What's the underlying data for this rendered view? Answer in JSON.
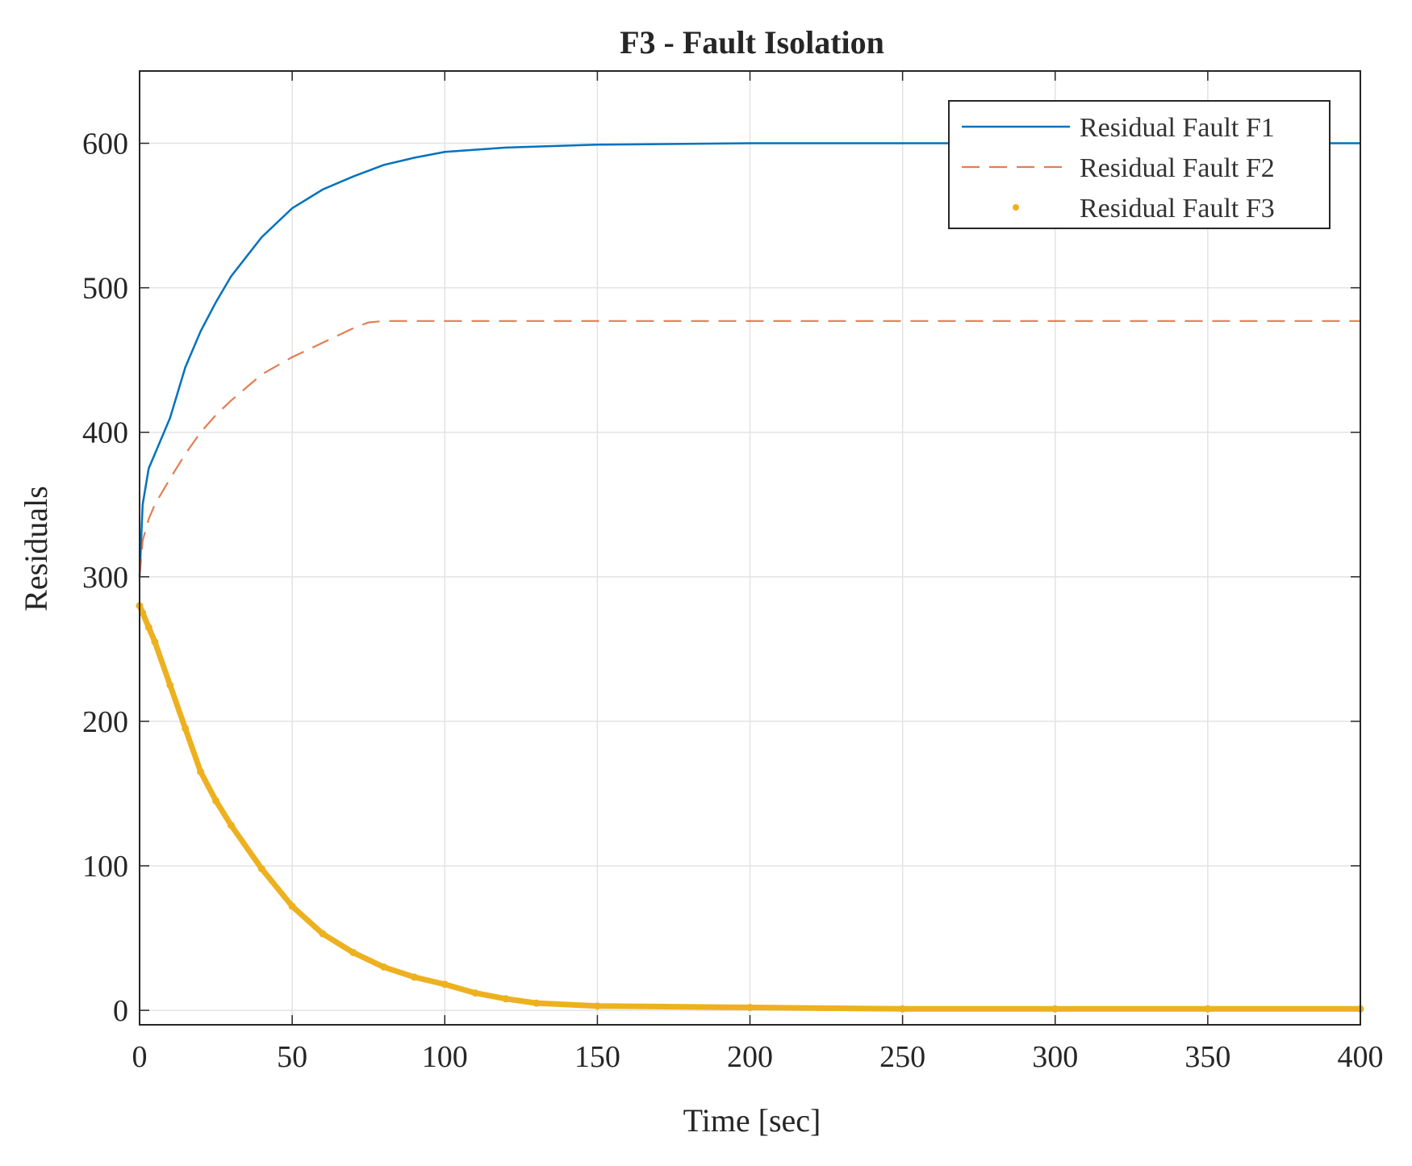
{
  "chart_data": {
    "type": "line",
    "title": "F3 - Fault Isolation",
    "xlabel": "Time [sec]",
    "ylabel": "Residuals",
    "xlim": [
      0,
      400
    ],
    "ylim": [
      -10,
      650
    ],
    "xticks": [
      0,
      50,
      100,
      150,
      200,
      250,
      300,
      350,
      400
    ],
    "yticks": [
      0,
      100,
      200,
      300,
      400,
      500,
      600
    ],
    "xtick_labels": [
      "0",
      "50",
      "100",
      "150",
      "200",
      "250",
      "300",
      "350",
      "400"
    ],
    "ytick_labels": [
      "0",
      "100",
      "200",
      "300",
      "400",
      "500",
      "600"
    ],
    "grid": true,
    "legend_position": "top-right",
    "series": [
      {
        "name": "Residual Fault F1",
        "color": "#0072BD",
        "style": "solid",
        "x": [
          0,
          1,
          3,
          5,
          10,
          15,
          20,
          25,
          30,
          40,
          50,
          60,
          70,
          80,
          90,
          100,
          120,
          150,
          200,
          250,
          300,
          350,
          400
        ],
        "y": [
          300,
          350,
          375,
          385,
          410,
          445,
          470,
          490,
          508,
          535,
          555,
          568,
          577,
          585,
          590,
          594,
          597,
          599,
          600,
          600,
          600,
          600,
          600
        ]
      },
      {
        "name": "Residual Fault F2",
        "color": "#D95319",
        "style": "dashed",
        "x": [
          0,
          1,
          3,
          5,
          10,
          15,
          20,
          25,
          30,
          40,
          50,
          60,
          70,
          75,
          80,
          100,
          150,
          200,
          250,
          300,
          350,
          400
        ],
        "y": [
          300,
          325,
          340,
          350,
          368,
          385,
          400,
          412,
          422,
          440,
          452,
          462,
          472,
          476,
          477,
          477,
          477,
          477,
          477,
          477,
          477,
          477
        ]
      },
      {
        "name": "Residual Fault F3",
        "color": "#EDB120",
        "style": "dots",
        "x": [
          0,
          1,
          3,
          5,
          10,
          15,
          20,
          25,
          30,
          40,
          50,
          60,
          70,
          80,
          90,
          100,
          110,
          120,
          130,
          150,
          200,
          250,
          300,
          350,
          400
        ],
        "y": [
          280,
          275,
          265,
          255,
          225,
          195,
          165,
          145,
          128,
          98,
          72,
          53,
          40,
          30,
          23,
          18,
          12,
          8,
          5,
          3,
          2,
          1,
          1,
          1,
          1
        ]
      }
    ]
  }
}
